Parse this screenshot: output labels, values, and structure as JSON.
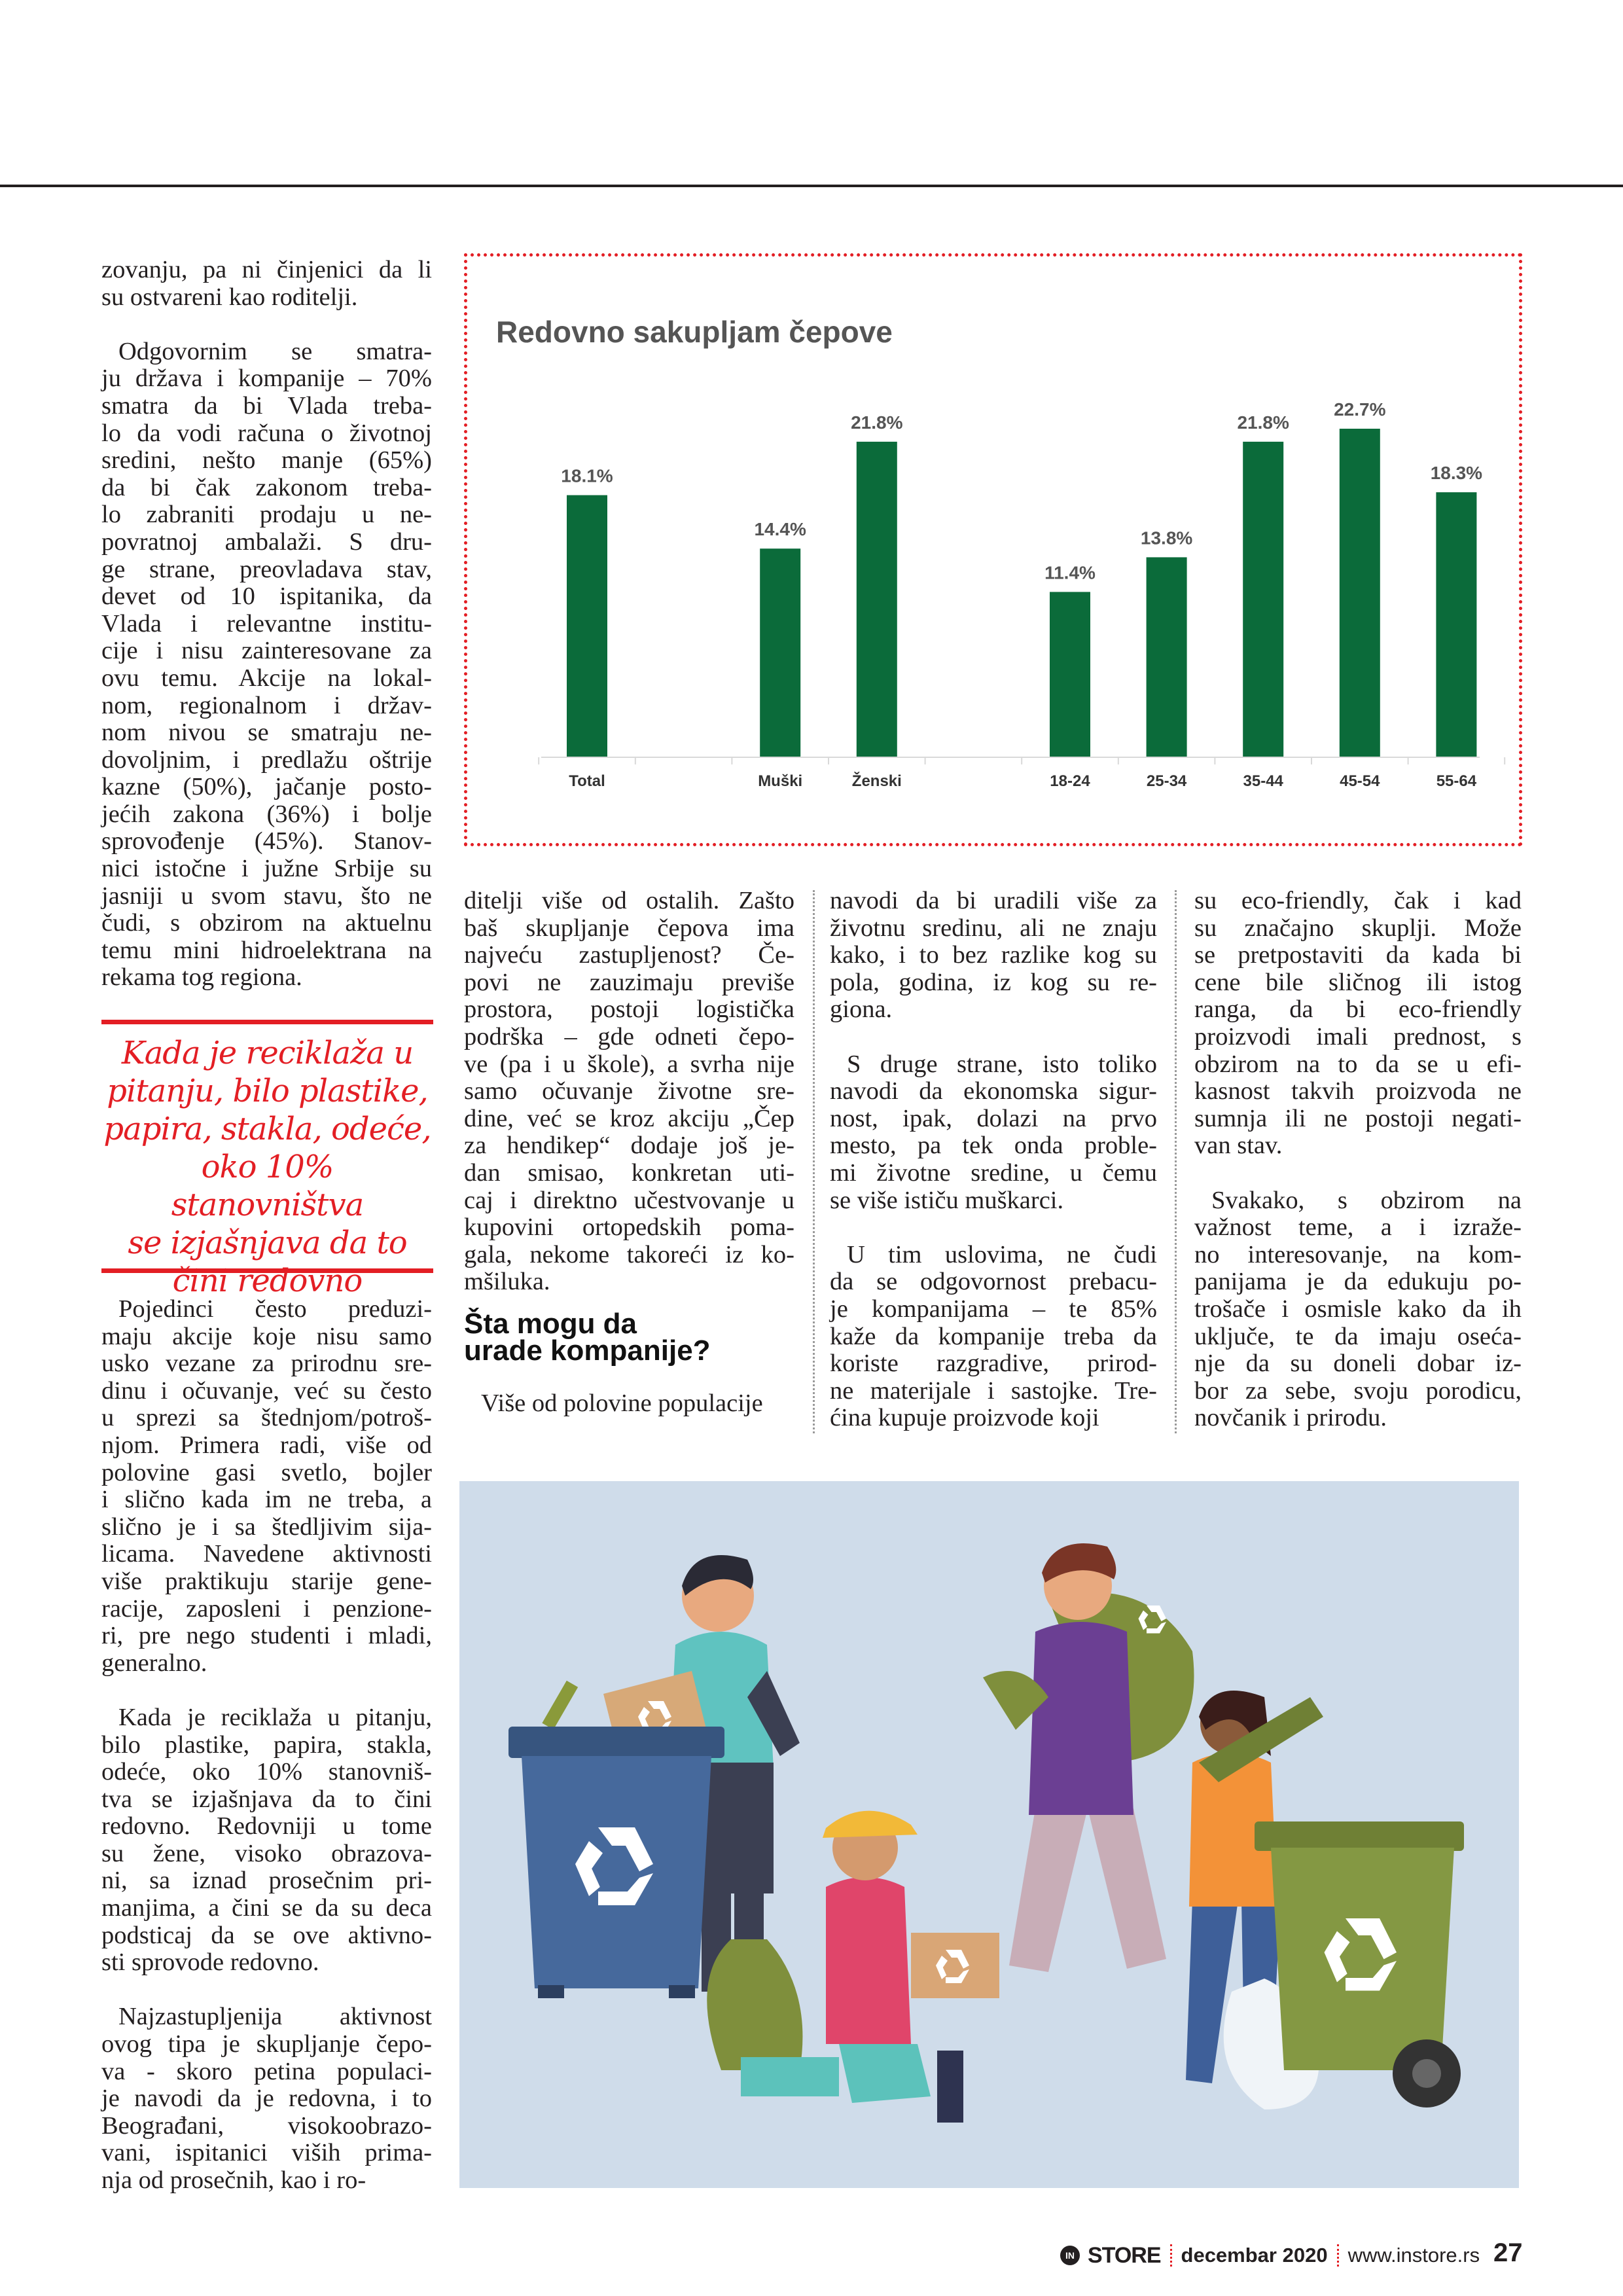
{
  "article": {
    "left_col_top": [
      [
        "zovanju, pa ni činjenici da li",
        "su ostvareni kao roditelji."
      ],
      [
        "Odgovornim se smatra-",
        "ju država i kompanije – 70%",
        "smatra da bi Vlada treba-",
        "lo da vodi računa o životnoj",
        "sredini, nešto manje (65%)",
        "da bi čak zakonom treba-",
        "lo zabraniti prodaju u ne-",
        "povratnoj ambalaži. S dru-",
        "ge strane, preovladava stav,",
        "devet od 10 ispitanika, da",
        "Vlada i relevantne institu-",
        "cije i nisu zainteresovane za",
        "ovu temu. Akcije na lokal-",
        "nom, regionalnom i držav-",
        "nom nivou se smatraju ne-",
        "dovoljnim, i predlažu oštrije",
        "kazne (50%), jačanje posto-",
        "jećih zakona (36%) i bolje",
        "sprovođenje (45%). Stanov-",
        "nici istočne i južne Srbije su",
        "jasniji u svom stavu, što ne",
        "čudi, s obzirom na aktuelnu",
        "temu mini hidroelektrana na",
        "rekama tog regiona."
      ]
    ],
    "pull_quote": [
      "Kada je reciklaža u",
      "pitanju, bilo plastike,",
      "papira, stakla, odeće,",
      "oko 10% stanovništva",
      "se izjašnjava da to",
      "čini redovno"
    ],
    "left_col_bottom": [
      [
        "Pojedinci često preduzi-",
        "maju akcije koje nisu samo",
        "usko vezane za prirodnu sre-",
        "dinu i očuvanje, već su često",
        "u sprezi sa štednjom/potroš-",
        "njom. Primera radi, više od",
        "polovine gasi svetlo, bojler",
        "i slično kada im ne treba, a",
        "slično je i sa štedljivim sija-",
        "licama. Navedene aktivnosti",
        "više praktikuju starije gene-",
        "racije, zaposleni i penzione-",
        "ri, pre nego studenti i mladi,",
        "generalno."
      ],
      [
        "Kada je reciklaža u pitanju,",
        "bilo plastike, papira, stakla,",
        "odeće, oko 10% stanovniš-",
        "tva se izjašnjava da to čini",
        "redovno. Redovniji u tome",
        "su žene, visoko obrazova-",
        "ni, sa iznad prosečnim pri-",
        "manjima, a čini se da su deca",
        "podsticaj da se ove aktivno-",
        "sti sprovode redovno."
      ],
      [
        "Najzastupljenija aktivnost",
        "ovog tipa je skupljanje čepo-",
        "va - skoro petina populaci-",
        "je navodi da je redovna, i to",
        "Beograđani, visokoobrazo-",
        "vani, ispitanici viših prima-",
        "nja od prosečnih, kao i ro-"
      ]
    ],
    "col2_top": [
      [
        "ditelji više od ostalih. Zašto",
        "baš skupljanje čepova ima",
        "najveću zastupljenost? Če-",
        "povi ne zauzimaju previše",
        "prostora, postoji logistička",
        "podrška – gde odneti čepo-",
        "ve (pa i u škole), a svrha nije",
        "samo očuvanje životne sre-",
        "dine, već se kroz akciju „Čep",
        "za hendikep“ dodaje još je-",
        "dan smisao, konkretan uti-",
        "caj i direktno učestvovanje u",
        "kupovini ortopedskih poma-",
        "gala, nekome takoreći iz ko-",
        "mšiluka."
      ]
    ],
    "subheading": [
      "Šta mogu da",
      "urade kompanije?"
    ],
    "col2_bottom": [
      [
        "Više od polovine populacije"
      ]
    ],
    "col3": [
      [
        "navodi da bi uradili više za",
        "životnu sredinu, ali ne znaju",
        "kako, i to bez razlike kog su",
        "pola, godina, iz kog su re-",
        "giona."
      ],
      [
        "S druge strane, isto toliko",
        "navodi da ekonomska sigur-",
        "nost, ipak, dolazi na prvo",
        "mesto, pa tek onda proble-",
        "mi životne sredine, u čemu",
        "se više ističu muškarci."
      ],
      [
        "U tim uslovima, ne čudi",
        "da se odgovornost prebacu-",
        "je kompanijama – te 85%",
        "kaže da kompanije treba da",
        "koriste razgradive, prirod-",
        "ne materijale i sastojke. Tre-",
        "ćina kupuje proizvode koji"
      ]
    ],
    "col4": [
      [
        "su eco-friendly, čak i kad",
        "su značajno skuplji. Može",
        "se pretpostaviti da kada bi",
        "cene bile sličnog ili istog",
        "ranga, da bi eco-friendly",
        "proizvodi imali prednost, s",
        "obzirom na to da se u efi-",
        "kasnost takvih proizvoda ne",
        "sumnja ili ne postoji negati-",
        "van stav."
      ],
      [
        "Svakako, s obzirom na",
        "važnost teme, a i izraže-",
        "no interesovanje, na kom-",
        "panijama je da edukuju po-",
        "trošače i osmisle kako da ih",
        "uključe, te da imaju oseća-",
        "nje da su doneli dobar iz-",
        "bor za sebe, svoju porodicu,",
        "novčanik i prirodu."
      ]
    ]
  },
  "chart_data": {
    "type": "bar",
    "title": "Redovno sakupljam čepove",
    "categories": [
      "Total",
      "Muški",
      "Ženski",
      "18-24",
      "25-34",
      "35-44",
      "45-54",
      "55-64"
    ],
    "values": [
      18.1,
      14.4,
      21.8,
      11.4,
      13.8,
      21.8,
      22.7,
      18.3
    ],
    "value_labels": [
      "18.1%",
      "14.4%",
      "21.8%",
      "11.4%",
      "13.8%",
      "21.8%",
      "22.7%",
      "18.3%"
    ],
    "xlabel": "",
    "ylabel": "",
    "grid": false,
    "legend": "none",
    "colors": {
      "bar": "#0b6b3a",
      "label": "#555555",
      "frame": "#e31e24"
    }
  },
  "illustration": {
    "icons": [
      "recycle-icon",
      "recycle-icon",
      "recycle-icon",
      "recycle-icon"
    ],
    "colors": {
      "background": "#cfdcea",
      "blue_bin": "#3f5f8f",
      "green_bin": "#7f9140"
    }
  },
  "footer": {
    "logo_in": "IN",
    "logo_store": "STORE",
    "date": "decembar 2020",
    "url": "www.instore.rs",
    "page": "27"
  },
  "colors": {
    "accent": "#e31e24",
    "text": "#231f20"
  }
}
